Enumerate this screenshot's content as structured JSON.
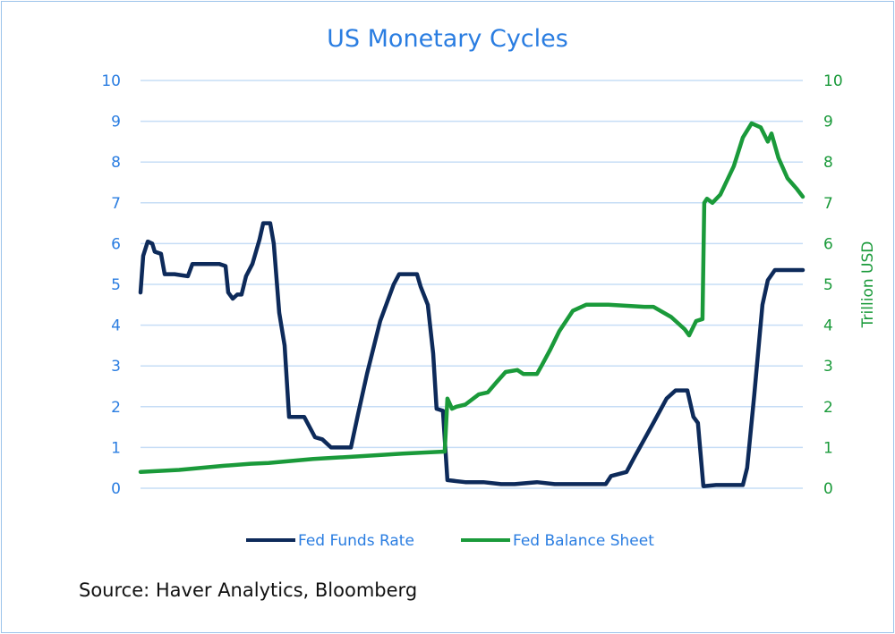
{
  "chart_data": {
    "type": "line",
    "title": "US Monetary Cycles",
    "xlabel": "",
    "ylabel": "",
    "y2label": "Trillion USD",
    "ylim": [
      0,
      10
    ],
    "y2lim": [
      0,
      10
    ],
    "xlim": [
      1995.3,
      2024.67
    ],
    "yticks": [
      "0",
      "1",
      "2",
      "3",
      "4",
      "5",
      "6",
      "7",
      "8",
      "9",
      "10"
    ],
    "y2ticks": [
      "0",
      "1",
      "2",
      "3",
      "4",
      "5",
      "6",
      "7",
      "8",
      "9",
      "10"
    ],
    "grid": true,
    "legend_position": "bottom",
    "colors": {
      "rate": "#0d2a5a",
      "balance": "#1a9a3a",
      "grid": "#c6ddf6"
    },
    "series": [
      {
        "name": "Fed Funds Rate",
        "axis": "left",
        "points": [
          [
            1995.3,
            4.8
          ],
          [
            1995.42,
            5.7
          ],
          [
            1995.62,
            6.05
          ],
          [
            1995.82,
            6.0
          ],
          [
            1995.93,
            5.8
          ],
          [
            1996.21,
            5.75
          ],
          [
            1996.37,
            5.25
          ],
          [
            1996.81,
            5.25
          ],
          [
            1997.4,
            5.2
          ],
          [
            1997.6,
            5.5
          ],
          [
            1998.0,
            5.5
          ],
          [
            1998.79,
            5.5
          ],
          [
            1999.07,
            5.45
          ],
          [
            1999.19,
            4.8
          ],
          [
            1999.39,
            4.65
          ],
          [
            1999.59,
            4.75
          ],
          [
            1999.78,
            4.75
          ],
          [
            1999.98,
            5.2
          ],
          [
            2000.26,
            5.5
          ],
          [
            2000.58,
            6.1
          ],
          [
            2000.74,
            6.5
          ],
          [
            2001.05,
            6.5
          ],
          [
            2001.21,
            6.0
          ],
          [
            2001.45,
            4.3
          ],
          [
            2001.69,
            3.5
          ],
          [
            2001.89,
            1.75
          ],
          [
            2002.56,
            1.75
          ],
          [
            2003.04,
            1.25
          ],
          [
            2003.36,
            1.2
          ],
          [
            2003.75,
            1.0
          ],
          [
            2004.63,
            1.0
          ],
          [
            2004.94,
            1.8
          ],
          [
            2005.34,
            2.8
          ],
          [
            2005.93,
            4.1
          ],
          [
            2006.53,
            5.0
          ],
          [
            2006.77,
            5.25
          ],
          [
            2007.56,
            5.25
          ],
          [
            2007.72,
            4.95
          ],
          [
            2008.04,
            4.5
          ],
          [
            2008.28,
            3.3
          ],
          [
            2008.43,
            1.95
          ],
          [
            2008.71,
            1.9
          ],
          [
            2008.91,
            0.2
          ],
          [
            2009.7,
            0.15
          ],
          [
            2010.5,
            0.15
          ],
          [
            2011.29,
            0.1
          ],
          [
            2011.89,
            0.1
          ],
          [
            2012.88,
            0.15
          ],
          [
            2013.67,
            0.1
          ],
          [
            2014.47,
            0.1
          ],
          [
            2015.26,
            0.1
          ],
          [
            2015.93,
            0.1
          ],
          [
            2016.17,
            0.3
          ],
          [
            2016.85,
            0.4
          ],
          [
            2017.24,
            0.8
          ],
          [
            2017.64,
            1.2
          ],
          [
            2018.04,
            1.6
          ],
          [
            2018.63,
            2.2
          ],
          [
            2019.03,
            2.4
          ],
          [
            2019.55,
            2.4
          ],
          [
            2019.82,
            1.75
          ],
          [
            2020.02,
            1.6
          ],
          [
            2020.26,
            0.05
          ],
          [
            2020.82,
            0.08
          ],
          [
            2022.01,
            0.08
          ],
          [
            2022.2,
            0.5
          ],
          [
            2022.52,
            2.3
          ],
          [
            2022.88,
            4.5
          ],
          [
            2023.12,
            5.1
          ],
          [
            2023.43,
            5.35
          ],
          [
            2024.67,
            5.35
          ]
        ]
      },
      {
        "name": "Fed Balance Sheet",
        "axis": "right",
        "points": [
          [
            1995.3,
            0.4
          ],
          [
            1997.01,
            0.45
          ],
          [
            1998.99,
            0.55
          ],
          [
            2000.18,
            0.6
          ],
          [
            2000.97,
            0.62
          ],
          [
            2002.96,
            0.72
          ],
          [
            2004.94,
            0.78
          ],
          [
            2006.93,
            0.85
          ],
          [
            2008.79,
            0.9
          ],
          [
            2008.91,
            2.2
          ],
          [
            2009.11,
            1.95
          ],
          [
            2009.31,
            2.0
          ],
          [
            2009.7,
            2.05
          ],
          [
            2010.3,
            2.3
          ],
          [
            2010.7,
            2.35
          ],
          [
            2011.09,
            2.6
          ],
          [
            2011.49,
            2.85
          ],
          [
            2012.01,
            2.9
          ],
          [
            2012.28,
            2.8
          ],
          [
            2012.88,
            2.8
          ],
          [
            2013.08,
            3.0
          ],
          [
            2013.47,
            3.4
          ],
          [
            2013.87,
            3.85
          ],
          [
            2014.47,
            4.35
          ],
          [
            2015.06,
            4.5
          ],
          [
            2016.05,
            4.5
          ],
          [
            2017.64,
            4.45
          ],
          [
            2018.04,
            4.45
          ],
          [
            2018.83,
            4.2
          ],
          [
            2019.43,
            3.9
          ],
          [
            2019.63,
            3.75
          ],
          [
            2019.94,
            4.1
          ],
          [
            2020.22,
            4.15
          ],
          [
            2020.3,
            7.0
          ],
          [
            2020.42,
            7.1
          ],
          [
            2020.66,
            7.0
          ],
          [
            2021.01,
            7.2
          ],
          [
            2021.61,
            7.9
          ],
          [
            2022.01,
            8.6
          ],
          [
            2022.4,
            8.95
          ],
          [
            2022.8,
            8.85
          ],
          [
            2023.12,
            8.5
          ],
          [
            2023.28,
            8.7
          ],
          [
            2023.59,
            8.1
          ],
          [
            2023.99,
            7.6
          ],
          [
            2024.39,
            7.35
          ],
          [
            2024.67,
            7.15
          ]
        ]
      }
    ]
  },
  "source": "Source: Haver Analytics, Bloomberg"
}
